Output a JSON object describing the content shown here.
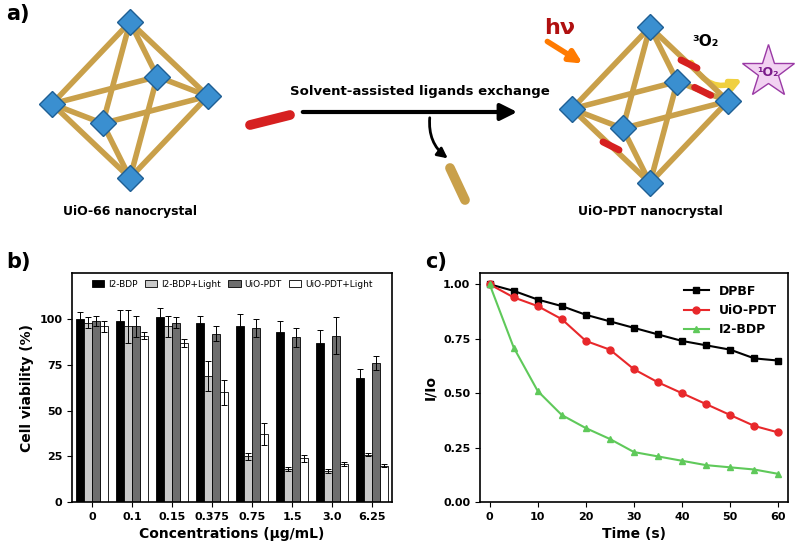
{
  "diagram": {
    "label": "a)",
    "left": {
      "label": "UiO-66 nanocrystal"
    },
    "arrow": {
      "label": "Solvent-assisted ligands exchange"
    },
    "right": {
      "label": "UiO-PDT nanocrystal",
      "light": "hν",
      "reactant": "³O₂",
      "product": "¹O₂"
    }
  },
  "chart_data": [
    {
      "type": "bar",
      "annotations": [
        "b)"
      ],
      "x_label": "Concentrations (μg/mL)",
      "y_label": "Cell viability (%)",
      "categories": [
        "0",
        "0.1",
        "0.15",
        "0.375",
        "0.75",
        "1.5",
        "3.0",
        "6.25"
      ],
      "series": [
        {
          "name": "I2-BDP",
          "color": "#000000",
          "values": [
            100,
            99,
            101,
            98,
            96,
            93,
            87,
            68
          ],
          "errors": [
            4,
            6,
            5,
            4,
            7,
            6,
            7,
            5
          ]
        },
        {
          "name": "I2-BDP+Light",
          "color": "#c8c8c8",
          "values": [
            98,
            96,
            96,
            69,
            25,
            18,
            17,
            26
          ],
          "errors": [
            3,
            9,
            6,
            8,
            2,
            1,
            1,
            1
          ]
        },
        {
          "name": "UiO-PDT",
          "color": "#6e6e6e",
          "values": [
            99,
            96,
            98,
            92,
            95,
            90,
            91,
            76
          ],
          "errors": [
            3,
            6,
            3,
            4,
            5,
            5,
            10,
            4
          ]
        },
        {
          "name": "UiO-PDT+Light",
          "color": "#ffffff",
          "values": [
            96,
            91,
            87,
            60,
            37,
            24,
            21,
            20
          ],
          "errors": [
            3,
            2,
            2,
            7,
            6,
            2,
            1,
            1
          ]
        }
      ],
      "ylim": [
        0,
        125
      ],
      "yticks": [
        0,
        25,
        50,
        75,
        100
      ],
      "legend": "upper center"
    },
    {
      "type": "line",
      "annotations": [
        "c)"
      ],
      "x_label": "Time (s)",
      "y_label": "I/Io",
      "x": [
        0,
        5,
        10,
        15,
        20,
        25,
        30,
        35,
        40,
        45,
        50,
        55,
        60
      ],
      "series": [
        {
          "name": "DPBF",
          "color": "#000000",
          "marker": "square",
          "values": [
            1.0,
            0.97,
            0.93,
            0.9,
            0.86,
            0.83,
            0.8,
            0.77,
            0.74,
            0.72,
            0.7,
            0.66,
            0.65
          ]
        },
        {
          "name": "UiO-PDT",
          "color": "#e8282b",
          "marker": "circle",
          "values": [
            1.0,
            0.94,
            0.9,
            0.84,
            0.74,
            0.7,
            0.61,
            0.55,
            0.5,
            0.45,
            0.4,
            0.35,
            0.32
          ]
        },
        {
          "name": "I2-BDP",
          "color": "#5fc95a",
          "marker": "triangle",
          "values": [
            1.0,
            0.71,
            0.51,
            0.4,
            0.34,
            0.29,
            0.23,
            0.21,
            0.19,
            0.17,
            0.16,
            0.15,
            0.13
          ]
        }
      ],
      "xlim": [
        -2,
        62
      ],
      "xticks": [
        0,
        10,
        20,
        30,
        40,
        50,
        60
      ],
      "ylim": [
        0,
        1.05
      ],
      "yticks": [
        {
          "value": 0,
          "label": "0.00"
        },
        {
          "value": 0.25,
          "label": "0.25"
        },
        {
          "value": 0.5,
          "label": "0.50"
        },
        {
          "value": 0.75,
          "label": "0.75"
        },
        {
          "value": 1.0,
          "label": "1.00"
        }
      ],
      "legend": "upper right"
    }
  ]
}
